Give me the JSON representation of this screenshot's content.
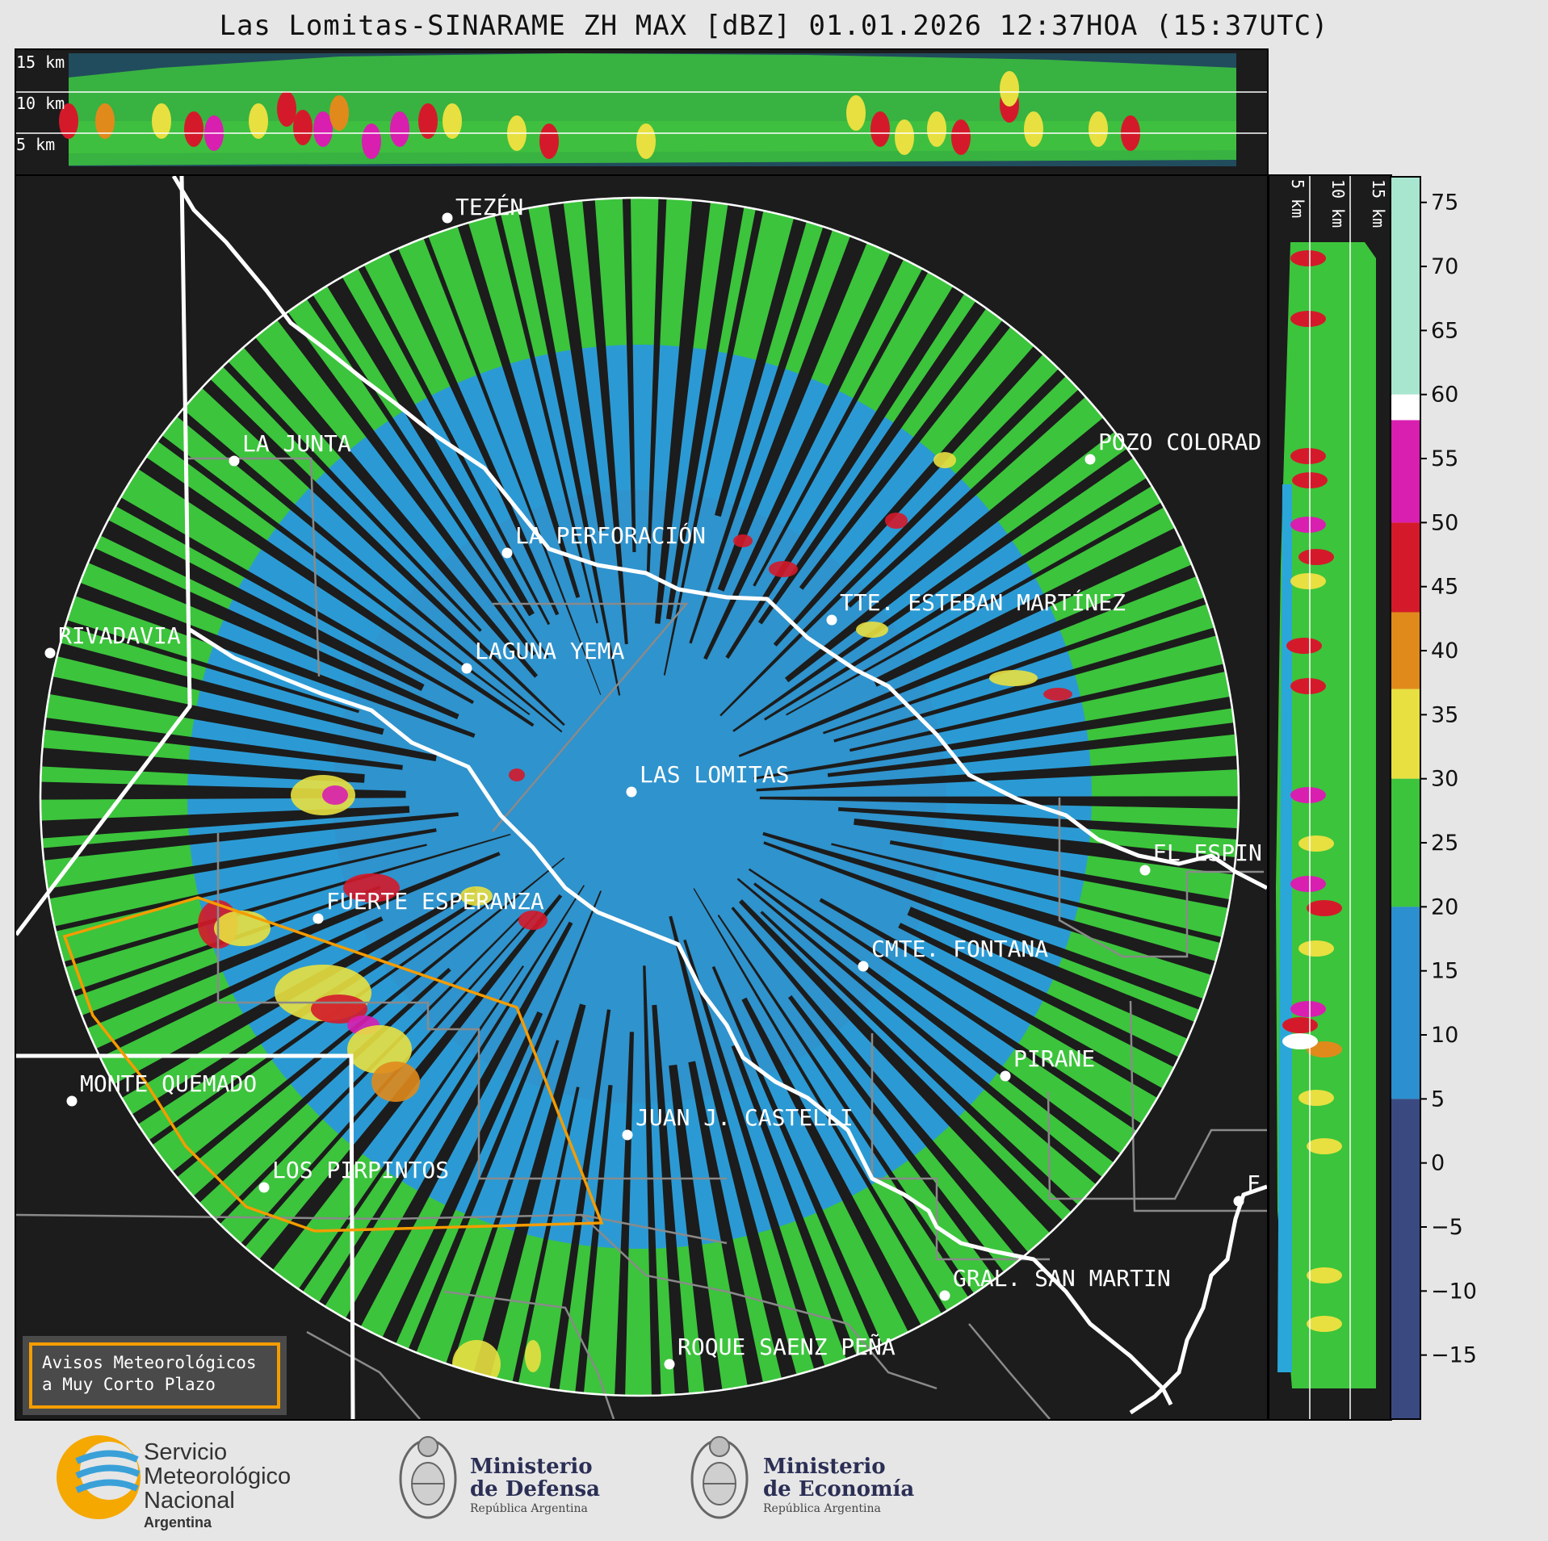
{
  "title": "Las Lomitas-SINARAME ZH MAX [dBZ] 01.01.2026 12:37HOA (15:37UTC)",
  "top_panel": {
    "km_labels": [
      "15 km",
      "10 km",
      "5 km"
    ]
  },
  "side_panel": {
    "km_labels": [
      "5 km",
      "10 km",
      "15 km"
    ]
  },
  "colorbar": {
    "ticks": [
      "75",
      "70",
      "65",
      "60",
      "55",
      "50",
      "45",
      "40",
      "35",
      "30",
      "25",
      "20",
      "15",
      "10",
      "5",
      "0",
      "−5",
      "−10",
      "−15"
    ],
    "bands": [
      {
        "from": 60,
        "to": 77,
        "color": "#a8e6cf"
      },
      {
        "from": 58,
        "to": 60,
        "color": "#ffffff"
      },
      {
        "from": 50,
        "to": 58,
        "color": "#d81fb0"
      },
      {
        "from": 43,
        "to": 50,
        "color": "#d41a2a"
      },
      {
        "from": 37,
        "to": 43,
        "color": "#e08a1c"
      },
      {
        "from": 30,
        "to": 37,
        "color": "#e8e040"
      },
      {
        "from": 20,
        "to": 30,
        "color": "#3cc43c"
      },
      {
        "from": 5,
        "to": 20,
        "color": "#2b8fd0"
      },
      {
        "from": -20,
        "to": 5,
        "color": "#3a4a80"
      }
    ]
  },
  "cities": [
    {
      "name": "TEZÉN"
    },
    {
      "name": "LA JUNTA"
    },
    {
      "name": "POZO COLORAD"
    },
    {
      "name": "LA PERFORACIÓN"
    },
    {
      "name": "TTE. ESTEBAN MARTÍNEZ"
    },
    {
      "name": "RIVADAVIA"
    },
    {
      "name": "LAGUNA YEMA"
    },
    {
      "name": "LAS LOMITAS"
    },
    {
      "name": "EL ESPIN"
    },
    {
      "name": "FUERTE ESPERANZA"
    },
    {
      "name": "CMTE. FONTANA"
    },
    {
      "name": "PIRANE"
    },
    {
      "name": "MONTE QUEMADO"
    },
    {
      "name": "JUAN J. CASTELLI"
    },
    {
      "name": "LOS PIRPINTOS"
    },
    {
      "name": "F"
    },
    {
      "name": "GRAL. SAN MARTIN"
    },
    {
      "name": "ROQUE SAENZ PEÑA"
    }
  ],
  "warning_box": {
    "line1": "Avisos Meteorológicos",
    "line2": "a Muy Corto Plazo"
  },
  "footer": {
    "smn": {
      "line1": "Servicio",
      "line2": "Meteorológico",
      "line3": "Nacional",
      "line4": "Argentina"
    },
    "defensa": {
      "line1": "Ministerio",
      "line2": "de Defensa",
      "line3": "República Argentina"
    },
    "economia": {
      "line1": "Ministerio",
      "line2": "de Economía",
      "line3": "República Argentina"
    }
  }
}
